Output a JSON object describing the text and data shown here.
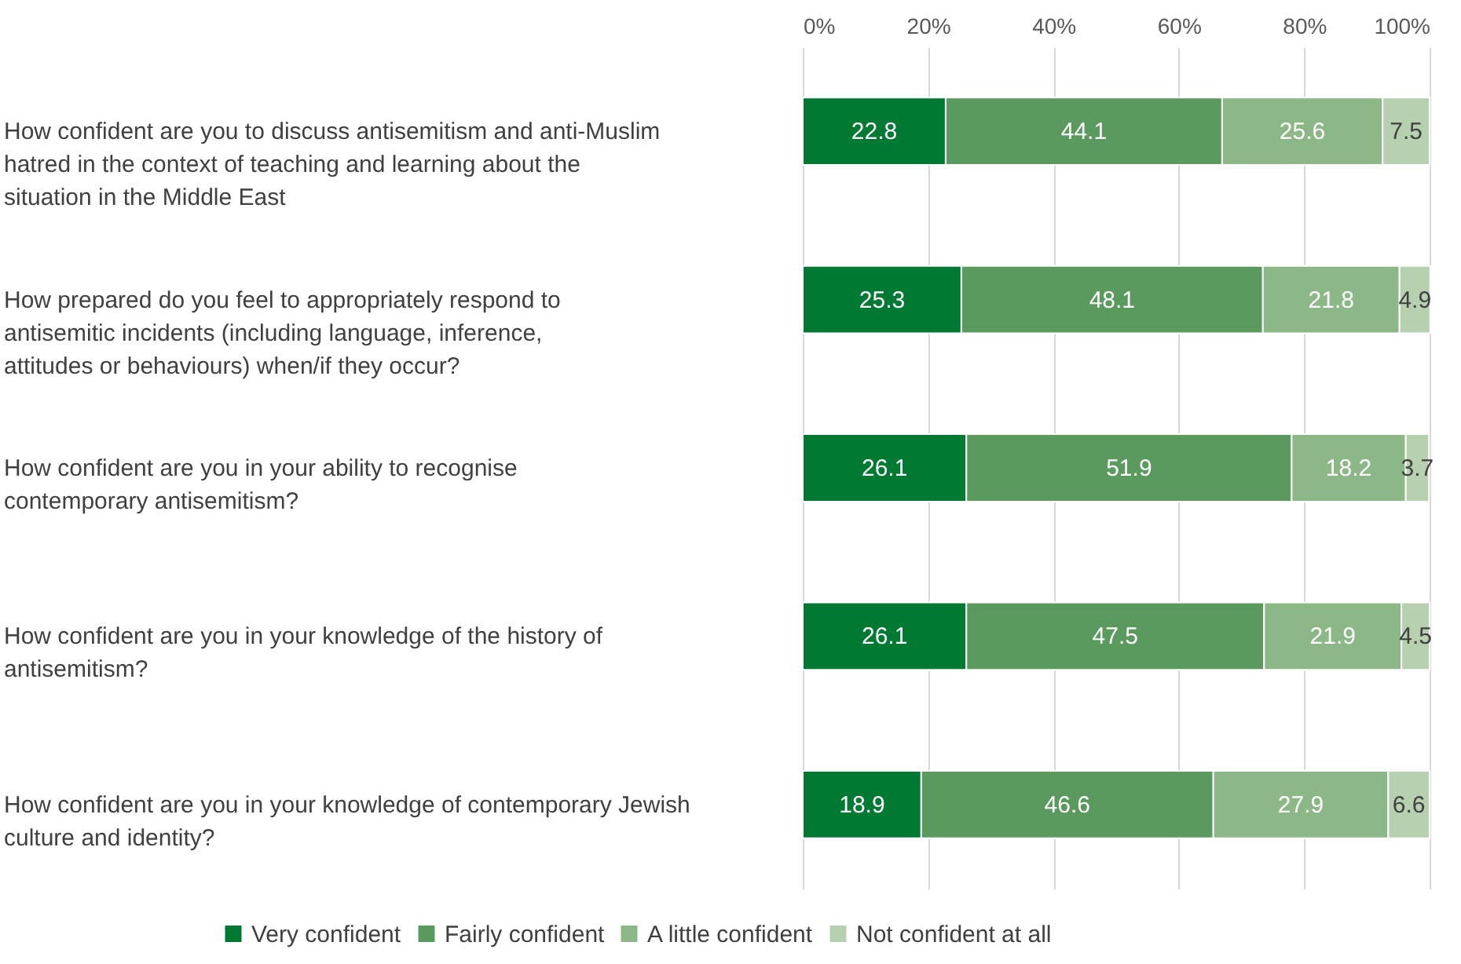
{
  "chart_data": {
    "type": "bar",
    "orientation": "horizontal",
    "stacked": true,
    "data_labels": true,
    "grid": "x",
    "legend": "bottom",
    "categories": [
      "How confident are you to discuss antisemitism and anti-Muslim hatred in the context of teaching and learning about the situation in the Middle East",
      "How prepared do you feel to appropriately respond to antisemitic incidents (including language, inference, attitudes or behaviours) when/if they occur?",
      "How confident are you in your ability to recognise contemporary antisemitism?",
      "How confident are you in your knowledge of the history of antisemitism?",
      "How confident are you in your knowledge of contemporary Jewish culture and identity?"
    ],
    "series": [
      {
        "name": "Very confident",
        "color": "#007a33",
        "values": [
          22.8,
          25.3,
          26.1,
          26.1,
          18.9
        ]
      },
      {
        "name": "Fairly confident",
        "color": "#5a9a5e",
        "values": [
          44.1,
          48.1,
          51.9,
          47.5,
          46.6
        ]
      },
      {
        "name": "A little confident",
        "color": "#8bb886",
        "values": [
          25.6,
          21.8,
          18.2,
          21.9,
          27.9
        ]
      },
      {
        "name": "Not confident at all",
        "color": "#b7d1b0",
        "values": [
          7.5,
          4.9,
          3.7,
          4.5,
          6.6
        ]
      }
    ],
    "xlim": [
      0,
      100
    ],
    "xticks": [
      {
        "value": 0,
        "label": "0%"
      },
      {
        "value": 20,
        "label": "20%"
      },
      {
        "value": 40,
        "label": "40%"
      },
      {
        "value": 60,
        "label": "60%"
      },
      {
        "value": 80,
        "label": "80%"
      },
      {
        "value": 100,
        "label": "100%"
      }
    ]
  }
}
